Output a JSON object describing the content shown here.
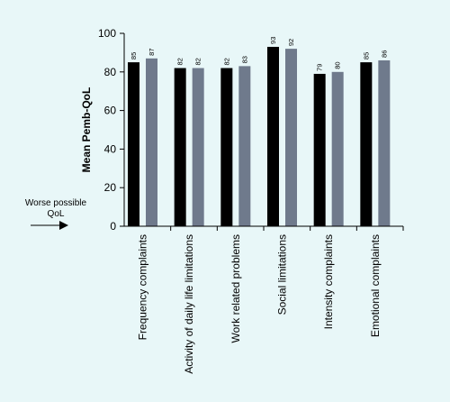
{
  "chart_data": {
    "type": "bar",
    "title": "",
    "xlabel": "",
    "ylabel": "Mean Pemb-QoL",
    "ylim": [
      0,
      100
    ],
    "yticks": [
      0,
      20,
      40,
      60,
      80,
      100
    ],
    "grid": false,
    "categories": [
      "Frequency complaints",
      "Activity of daily life limitations",
      "Work related problems",
      "Social limitations",
      "Intensity complaints",
      "Emotional complaints"
    ],
    "series": [
      {
        "values": [
          85,
          82,
          82,
          93,
          79,
          85
        ],
        "color": "#000000"
      },
      {
        "values": [
          87,
          82,
          83,
          92,
          80,
          86
        ],
        "color": "#6f7a8c"
      }
    ],
    "annotation": {
      "line1": "Worse possible",
      "line2": "QoL",
      "arrow": "right-arrow-icon"
    }
  }
}
